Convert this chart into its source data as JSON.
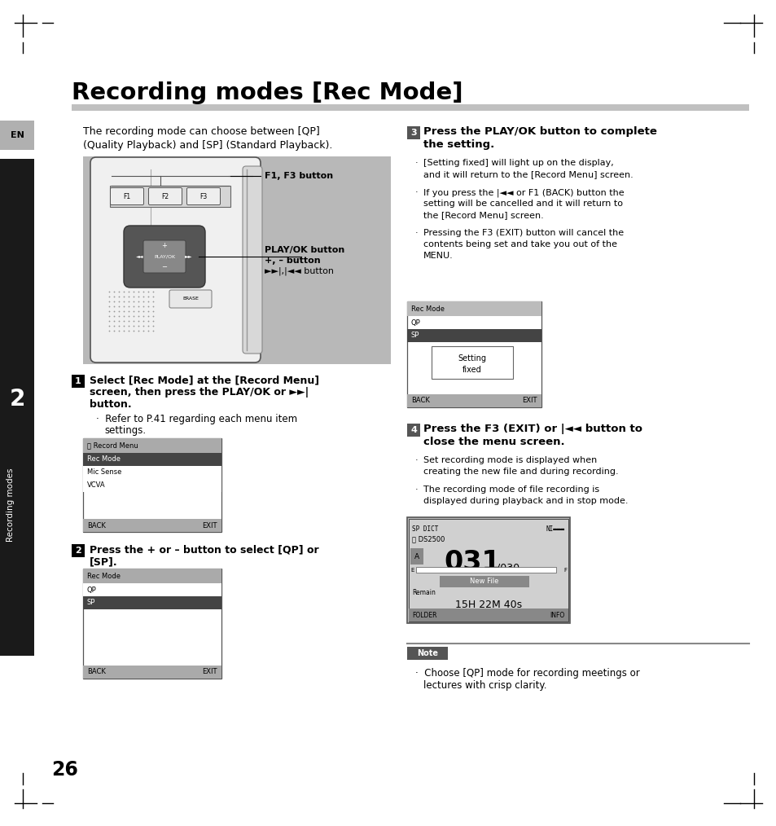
{
  "title": "Recording modes [Rec Mode]",
  "bg_color": "#ffffff",
  "title_underline_color": "#c0c0c0",
  "page_number": "26",
  "lang_label": "EN",
  "chapter_num": "2",
  "chapter_label": "Recording modes",
  "intro_line1": "The recording mode can choose between [QP]",
  "intro_line2": "(Quality Playback) and [SP] (Standard Playback).",
  "step1_lines": [
    "Select [Rec Mode] at the [Record Menu]",
    "screen, then press the PLAY/OK or ►►|",
    "button."
  ],
  "step1_bullet": [
    "Refer to P.41 regarding each menu item",
    "settings."
  ],
  "step2_lines": [
    "Press the + or – button to select [QP] or",
    "[SP]."
  ],
  "step3_lines": [
    "Press the PLAY/OK button to complete",
    "the setting."
  ],
  "step3_b1": [
    "[Setting fixed] will light up on the display,",
    "and it will return to the [Record Menu] screen."
  ],
  "step3_b2": [
    "If you press the |◄◄ or F1 (BACK) button the",
    "setting will be cancelled and it will return to",
    "the [Record Menu] screen."
  ],
  "step3_b3": [
    "Pressing the F3 (EXIT) button will cancel the",
    "contents being set and take you out of the",
    "MENU."
  ],
  "step4_lines": [
    "Press the F3 (EXIT) or |◄◄ button to",
    "close the menu screen."
  ],
  "step4_b1": [
    "Set recording mode is displayed when",
    "creating the new file and during recording."
  ],
  "step4_b2": [
    "The recording mode of file recording is",
    "displayed during playback and in stop mode."
  ],
  "note_line1": "Choose [QP] mode for recording meetings or",
  "note_line2": "lectures with crisp clarity.",
  "sidebar_color": "#1a1a1a",
  "sidebar_tab_color": "#b0b0b0",
  "note_bg_color": "#e8e8e8",
  "screen_border": "#555555",
  "screen_header_dark": "#444444",
  "screen_header_light": "#bbbbbb",
  "screen_footer": "#aaaaaa",
  "device_bg": "#c0c0c0",
  "step_badge_color": "#222222",
  "step3_badge_color": "#555555"
}
